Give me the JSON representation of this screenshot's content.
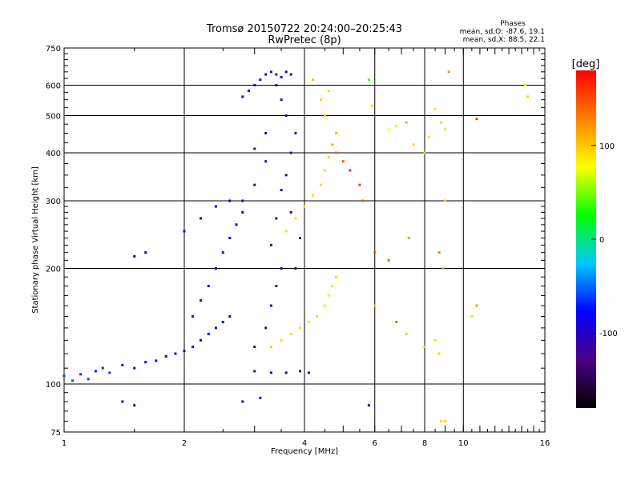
{
  "chart_data": {
    "type": "scatter",
    "title": "Tromsø 20150722 20:24:00–20:25:43",
    "subtitle": "RwPretec (8p)",
    "xlabel": "Frequency [MHz]",
    "ylabel": "Stationary phase Virtual Height [km]",
    "x_scale": "log",
    "y_scale": "log",
    "xlim": [
      1,
      16
    ],
    "ylim": [
      75,
      750
    ],
    "x_ticks": [
      1,
      2,
      4,
      6,
      8,
      10,
      16
    ],
    "y_ticks": [
      75,
      100,
      200,
      300,
      400,
      500,
      600,
      750
    ],
    "x_tick_labels": [
      "1",
      "2",
      "4",
      "6",
      "8",
      "10",
      "16"
    ],
    "y_tick_labels": [
      "75",
      "100",
      "200",
      "300",
      "400",
      "500",
      "600",
      "750"
    ],
    "grid": true,
    "phase_stats": {
      "heading": "Phases",
      "o_line": "mean, sd,O: -87.6, 19.1",
      "x_line": "mean, sd,X:  88.5, 22.1"
    },
    "colorbar": {
      "label": "[deg]",
      "range": [
        -180,
        180
      ],
      "ticks": [
        100,
        0,
        -100
      ],
      "tick_labels": [
        "100",
        "0",
        "-100"
      ],
      "colors": [
        "#000000",
        "#4b0082",
        "#0000ff",
        "#00c8ff",
        "#00ff00",
        "#ffff00",
        "#ff8000",
        "#ff0000"
      ]
    },
    "series": [
      {
        "name": "O",
        "points": [
          [
            1.0,
            105,
            -60
          ],
          [
            1.05,
            102,
            -55
          ],
          [
            1.1,
            106,
            -65
          ],
          [
            1.15,
            103,
            -60
          ],
          [
            1.2,
            108,
            -70
          ],
          [
            1.25,
            110,
            -65
          ],
          [
            1.3,
            107,
            -62
          ],
          [
            1.4,
            112,
            -75
          ],
          [
            1.5,
            110,
            -80
          ],
          [
            1.6,
            114,
            -85
          ],
          [
            1.7,
            115,
            -90
          ],
          [
            1.8,
            118,
            -88
          ],
          [
            1.9,
            120,
            -85
          ],
          [
            2.0,
            122,
            -80
          ],
          [
            2.1,
            125,
            -75
          ],
          [
            2.2,
            130,
            -82
          ],
          [
            2.3,
            135,
            -78
          ],
          [
            2.4,
            140,
            -85
          ],
          [
            2.5,
            145,
            -90
          ],
          [
            2.6,
            150,
            -80
          ],
          [
            2.1,
            150,
            -70
          ],
          [
            2.2,
            165,
            -75
          ],
          [
            2.3,
            180,
            -80
          ],
          [
            2.4,
            200,
            -85
          ],
          [
            2.5,
            220,
            -82
          ],
          [
            2.6,
            240,
            -78
          ],
          [
            2.7,
            260,
            -85
          ],
          [
            2.8,
            280,
            -90
          ],
          [
            2.4,
            290,
            -88
          ],
          [
            2.6,
            300,
            -85
          ],
          [
            2.0,
            250,
            -75
          ],
          [
            2.2,
            270,
            -80
          ],
          [
            1.5,
            215,
            -80
          ],
          [
            1.6,
            220,
            -82
          ],
          [
            2.8,
            560,
            -75
          ],
          [
            2.9,
            580,
            -80
          ],
          [
            3.0,
            600,
            -100
          ],
          [
            3.1,
            620,
            -120
          ],
          [
            3.2,
            640,
            -115
          ],
          [
            3.3,
            650,
            -110
          ],
          [
            3.4,
            640,
            -105
          ],
          [
            3.5,
            630,
            -100
          ],
          [
            3.6,
            650,
            -95
          ],
          [
            3.7,
            640,
            -100
          ],
          [
            3.0,
            125,
            -100
          ],
          [
            3.2,
            140,
            -110
          ],
          [
            3.3,
            160,
            -115
          ],
          [
            3.4,
            180,
            -120
          ],
          [
            3.5,
            200,
            -118
          ],
          [
            3.3,
            230,
            -115
          ],
          [
            3.4,
            270,
            -120
          ],
          [
            3.5,
            320,
            -110
          ],
          [
            3.6,
            350,
            -115
          ],
          [
            3.7,
            400,
            -118
          ],
          [
            3.8,
            450,
            -120
          ],
          [
            3.6,
            500,
            -112
          ],
          [
            3.5,
            550,
            -115
          ],
          [
            3.4,
            600,
            -118
          ],
          [
            3.0,
            108,
            -110
          ],
          [
            3.3,
            107,
            -112
          ],
          [
            3.6,
            107,
            -115
          ],
          [
            3.9,
            108,
            -118
          ],
          [
            4.1,
            107,
            -115
          ],
          [
            2.8,
            300,
            -100
          ],
          [
            3.0,
            330,
            -105
          ],
          [
            3.2,
            380,
            -110
          ],
          [
            3.0,
            410,
            -108
          ],
          [
            3.2,
            450,
            -115
          ],
          [
            3.8,
            200,
            -105
          ],
          [
            3.9,
            240,
            -110
          ],
          [
            3.7,
            280,
            -108
          ],
          [
            1.4,
            90,
            -90
          ],
          [
            1.5,
            88,
            -92
          ],
          [
            2.8,
            90,
            -95
          ],
          [
            3.1,
            92,
            -100
          ],
          [
            5.8,
            88,
            -110
          ]
        ]
      },
      {
        "name": "X",
        "points": [
          [
            3.3,
            125,
            95
          ],
          [
            3.5,
            130,
            90
          ],
          [
            3.7,
            135,
            85
          ],
          [
            3.9,
            140,
            88
          ],
          [
            4.1,
            145,
            90
          ],
          [
            4.3,
            150,
            92
          ],
          [
            4.5,
            160,
            88
          ],
          [
            4.6,
            170,
            85
          ],
          [
            4.7,
            180,
            90
          ],
          [
            4.8,
            190,
            95
          ],
          [
            3.6,
            250,
            85
          ],
          [
            3.8,
            270,
            90
          ],
          [
            4.0,
            290,
            88
          ],
          [
            4.2,
            310,
            92
          ],
          [
            4.4,
            330,
            95
          ],
          [
            4.5,
            360,
            90
          ],
          [
            4.6,
            390,
            95
          ],
          [
            4.7,
            420,
            110
          ],
          [
            4.8,
            450,
            105
          ],
          [
            4.5,
            500,
            100
          ],
          [
            4.4,
            550,
            95
          ],
          [
            4.6,
            580,
            90
          ],
          [
            4.2,
            620,
            100
          ],
          [
            4.8,
            400,
            140
          ],
          [
            5.0,
            380,
            150
          ],
          [
            5.2,
            360,
            160
          ],
          [
            5.5,
            330,
            155
          ],
          [
            5.6,
            300,
            150
          ],
          [
            5.8,
            620,
            40
          ],
          [
            5.9,
            530,
            95
          ],
          [
            6.5,
            460,
            80
          ],
          [
            6.8,
            470,
            70
          ],
          [
            7.2,
            480,
            110
          ],
          [
            7.5,
            420,
            95
          ],
          [
            8.0,
            400,
            100
          ],
          [
            8.2,
            440,
            90
          ],
          [
            8.5,
            520,
            85
          ],
          [
            8.8,
            480,
            60
          ],
          [
            9.0,
            460,
            90
          ],
          [
            9.2,
            650,
            120
          ],
          [
            10.8,
            490,
            160
          ],
          [
            14.3,
            600,
            85
          ],
          [
            14.5,
            560,
            95
          ],
          [
            6.0,
            220,
            150
          ],
          [
            6.5,
            210,
            140
          ],
          [
            7.3,
            240,
            120
          ],
          [
            8.7,
            220,
            130
          ],
          [
            8.9,
            200,
            110
          ],
          [
            6.0,
            160,
            100
          ],
          [
            6.8,
            145,
            140
          ],
          [
            7.2,
            135,
            60
          ],
          [
            8.0,
            125,
            100
          ],
          [
            8.5,
            130,
            90
          ],
          [
            8.7,
            120,
            95
          ],
          [
            9.0,
            300,
            100
          ],
          [
            10.5,
            150,
            90
          ],
          [
            10.8,
            160,
            120
          ],
          [
            8.8,
            80,
            100
          ],
          [
            9.0,
            80,
            95
          ]
        ]
      }
    ]
  }
}
